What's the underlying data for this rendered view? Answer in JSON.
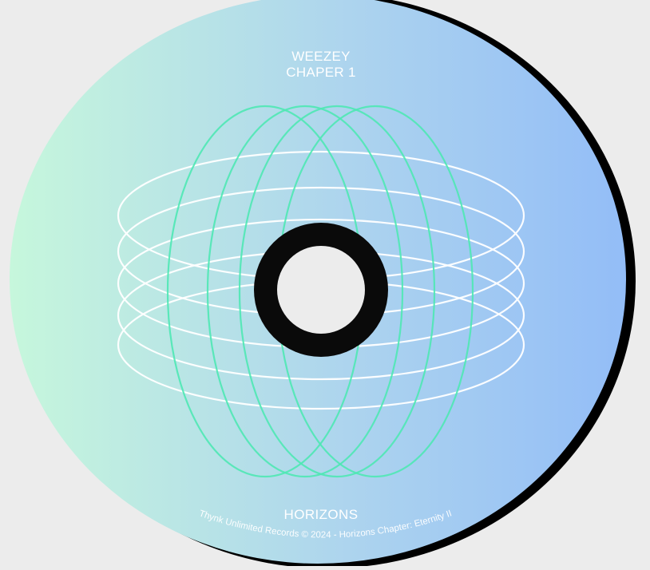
{
  "artist_name": "WEEZEY",
  "chapter_label": "CHAPER 1",
  "album_title": "HORIZONS",
  "credit_line": "Thynk Unlimited Records © 2024 - Horizons Chapter: Eternity II",
  "colors": {
    "background": "#ececec",
    "gradient_start": "#c6f7dc",
    "gradient_end": "#93bdf7",
    "rim": "#000000",
    "hub_ring": "#0a0a0a",
    "green_lines": "#4fe8b4",
    "white_lines": "#ffffff"
  },
  "icons": {
    "center_hub": "disc-hole-ring-icon",
    "orbit_art": "orbit-ellipses-icon"
  }
}
